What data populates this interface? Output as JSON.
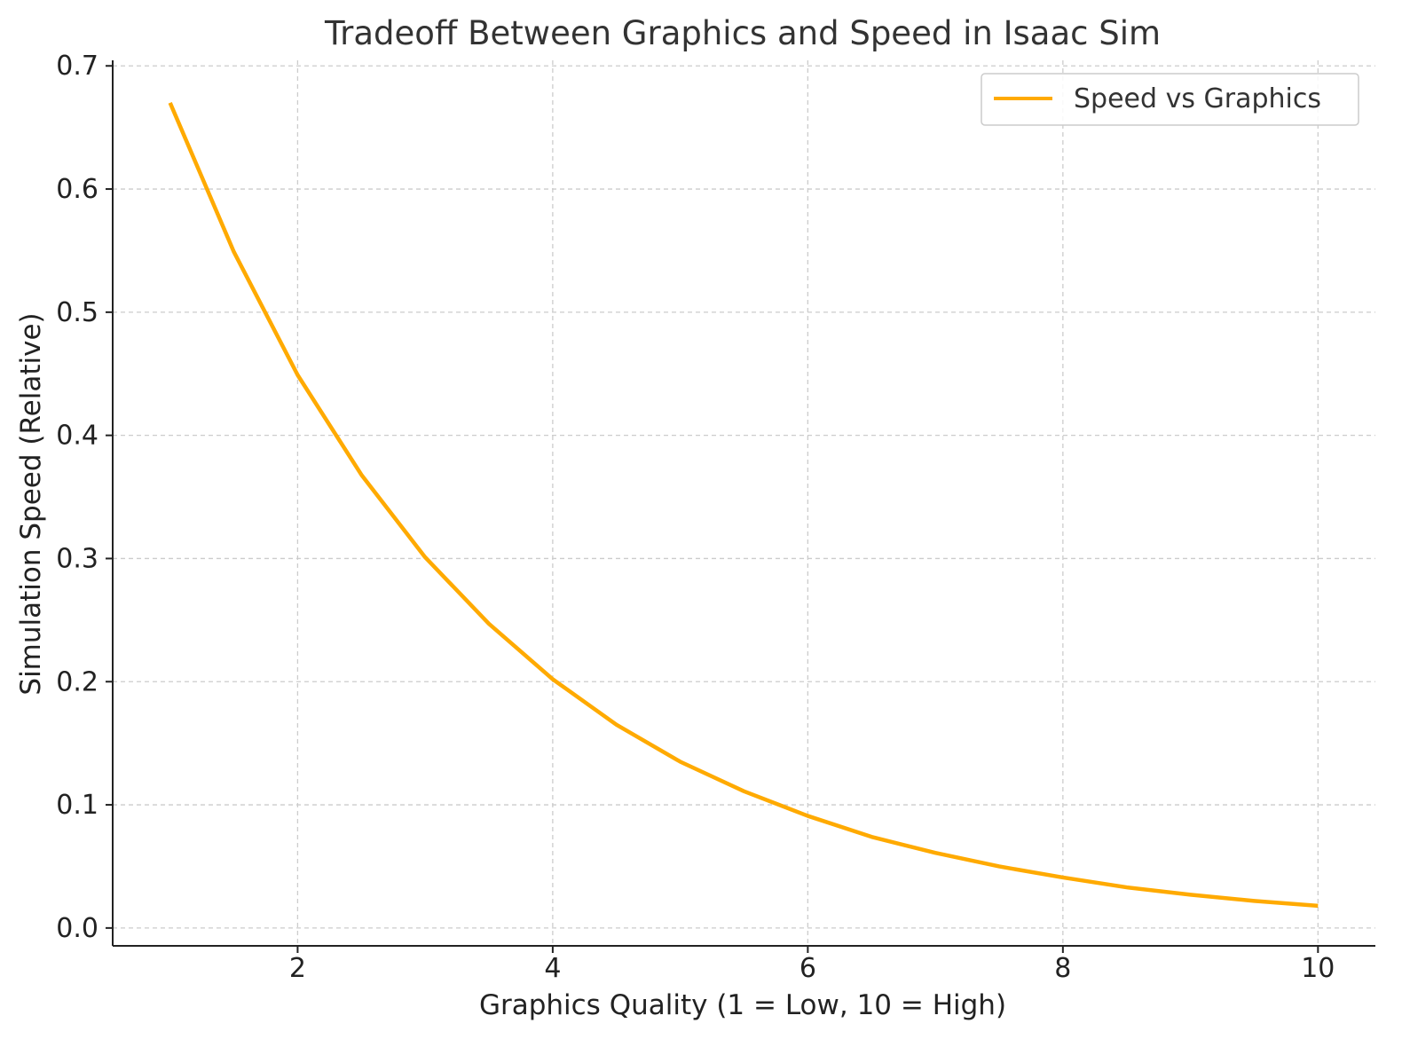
{
  "chart_data": {
    "type": "line",
    "title": "Tradeoff Between Graphics and Speed in Isaac Sim",
    "xlabel": "Graphics Quality (1 = Low, 10 = High)",
    "ylabel": "Simulation Speed (Relative)",
    "xlim": [
      0.55,
      10.45
    ],
    "ylim": [
      -0.0145,
      0.7045
    ],
    "x_ticks": [
      2,
      4,
      6,
      8,
      10
    ],
    "y_ticks": [
      0.0,
      0.1,
      0.2,
      0.3,
      0.4,
      0.5,
      0.6,
      0.7
    ],
    "x_tick_labels": [
      "2",
      "4",
      "6",
      "8",
      "10"
    ],
    "y_tick_labels": [
      "0.0",
      "0.1",
      "0.2",
      "0.3",
      "0.4",
      "0.5",
      "0.6",
      "0.7"
    ],
    "grid": true,
    "legend_position": "top-right",
    "series": [
      {
        "name": "Speed vs Graphics",
        "color": "#FFAA00",
        "x": [
          1.0,
          1.5,
          2.0,
          2.5,
          3.0,
          3.5,
          4.0,
          4.5,
          5.0,
          5.5,
          6.0,
          6.5,
          7.0,
          7.5,
          8.0,
          8.5,
          9.0,
          9.5,
          10.0
        ],
        "y": [
          0.67,
          0.549,
          0.449,
          0.368,
          0.301,
          0.247,
          0.202,
          0.165,
          0.135,
          0.111,
          0.091,
          0.074,
          0.061,
          0.05,
          0.041,
          0.033,
          0.027,
          0.022,
          0.018
        ]
      }
    ]
  }
}
